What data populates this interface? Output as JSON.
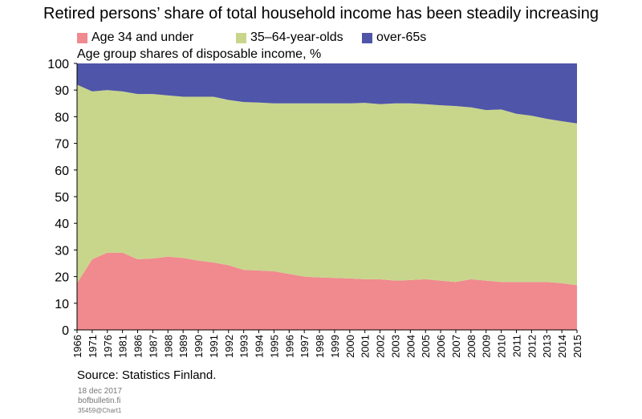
{
  "title": "Retired persons’ share of total household income has been steadily increasing",
  "subtitle": "Age group shares of disposable income, %",
  "source": "Source: Statistics Finland.",
  "footer": {
    "date": "18 dec 2017",
    "site": "bofbulletin.fi",
    "code": "35459@Chart1"
  },
  "colors": {
    "young": "#f08a8e",
    "middle": "#c8d68c",
    "old": "#4f55a8"
  },
  "chart_data": {
    "type": "area",
    "stacked": true,
    "ylabel": "Age group shares of disposable income, %",
    "ylim": [
      0,
      100
    ],
    "yticks": [
      0,
      10,
      20,
      30,
      40,
      50,
      60,
      70,
      80,
      90,
      100
    ],
    "grid": false,
    "legend": "top",
    "x": [
      "1966",
      "1971",
      "1976",
      "1981",
      "1986",
      "1987",
      "1988",
      "1989",
      "1990",
      "1991",
      "1992",
      "1993",
      "1994",
      "1995",
      "1996",
      "1997",
      "1998",
      "1999",
      "2000",
      "2001",
      "2002",
      "2003",
      "2004",
      "2005",
      "2006",
      "2007",
      "2008",
      "2009",
      "2010",
      "2011",
      "2012",
      "2013",
      "2014",
      "2015"
    ],
    "series": [
      {
        "name": "Age 34 and under",
        "values": [
          17.5,
          26.5,
          29,
          29,
          26.5,
          26.8,
          27.5,
          27,
          26,
          25.3,
          24.3,
          22.5,
          22.3,
          22,
          21,
          20,
          19.7,
          19.5,
          19.3,
          19,
          19,
          18.5,
          18.7,
          19,
          18.5,
          18,
          19,
          18.5,
          18,
          18,
          18,
          18,
          17.5,
          16.8
        ]
      },
      {
        "name": "35–64-year-olds",
        "values": [
          74.5,
          63,
          61,
          60.5,
          62,
          61.7,
          60.5,
          60.5,
          61.5,
          62.2,
          62,
          63,
          63,
          63,
          64,
          65,
          65.3,
          65.5,
          65.7,
          66.2,
          65.7,
          66.5,
          66.3,
          65.7,
          65.8,
          66,
          64.5,
          64,
          64.7,
          63.1,
          62.4,
          61.2,
          60.8,
          60.7
        ]
      },
      {
        "name": "over-65s",
        "values": [
          8,
          10.5,
          10,
          10.5,
          11.5,
          11.5,
          12,
          12.5,
          12.5,
          12.5,
          13.7,
          14.5,
          14.7,
          15,
          15,
          15,
          15,
          15,
          15,
          14.8,
          15.3,
          15,
          15,
          15.3,
          15.7,
          16,
          16.5,
          17.5,
          17.3,
          18.9,
          19.6,
          20.8,
          21.7,
          22.5
        ]
      }
    ]
  }
}
